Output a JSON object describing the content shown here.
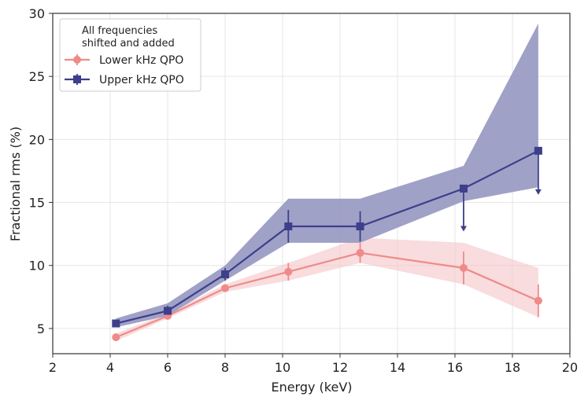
{
  "colors": {
    "lower": "#ef8a8a",
    "lower_band": "#f5c4c6",
    "upper": "#3d3f8a",
    "upper_band": "#9b9cc4",
    "grid": "#e6e6e6",
    "axis": "#333333"
  },
  "chart_data": {
    "type": "line",
    "title": "",
    "xlabel": "Energy (keV)",
    "ylabel": "Fractional rms (%)",
    "xlim": [
      2,
      20
    ],
    "ylim": [
      3,
      30
    ],
    "xticks": [
      2,
      4,
      6,
      8,
      10,
      12,
      14,
      16,
      18,
      20
    ],
    "yticks": [
      5,
      10,
      15,
      20,
      25,
      30
    ],
    "grid": true,
    "legend": {
      "placement": "top-left",
      "title_line1": "All frequencies",
      "title_line2": "shifted and added",
      "entries": [
        "Lower kHz QPO",
        "Upper kHz QPO"
      ]
    },
    "series": [
      {
        "name": "Lower kHz QPO",
        "marker": "circle",
        "x": [
          4.2,
          6.0,
          8.0,
          10.2,
          12.7,
          16.3,
          18.9
        ],
        "y": [
          4.3,
          6.0,
          8.2,
          9.5,
          11.0,
          9.8,
          7.2
        ],
        "yerr_low": [
          0.3,
          0.2,
          0.3,
          0.7,
          0.8,
          1.3,
          1.3
        ],
        "yerr_high": [
          0.3,
          0.2,
          0.3,
          0.7,
          0.8,
          1.3,
          1.3
        ],
        "upper_limit": [
          false,
          false,
          false,
          false,
          false,
          false,
          false
        ],
        "band_low": [
          4.0,
          5.8,
          7.9,
          8.8,
          10.2,
          8.5,
          5.9
        ],
        "band_high": [
          4.6,
          6.2,
          8.5,
          10.2,
          12.2,
          11.8,
          9.8
        ]
      },
      {
        "name": "Upper kHz QPO",
        "marker": "square",
        "x": [
          4.2,
          6.0,
          8.0,
          10.2,
          12.7,
          16.3,
          18.9
        ],
        "y": [
          5.4,
          6.4,
          9.3,
          13.1,
          13.1,
          16.1,
          19.1
        ],
        "yerr_low": [
          0.2,
          0.3,
          0.5,
          1.3,
          1.2,
          0,
          0
        ],
        "yerr_high": [
          0.2,
          0.4,
          0.5,
          1.3,
          1.2,
          0,
          0
        ],
        "upper_limit": [
          false,
          false,
          false,
          false,
          false,
          true,
          true
        ],
        "limit_to": [
          null,
          null,
          null,
          null,
          null,
          12.7,
          15.6
        ],
        "band_low": [
          5.1,
          6.0,
          8.8,
          11.8,
          11.8,
          15.1,
          16.2
        ],
        "band_high": [
          5.8,
          7.0,
          10.0,
          15.3,
          15.3,
          17.9,
          29.2
        ]
      }
    ]
  }
}
